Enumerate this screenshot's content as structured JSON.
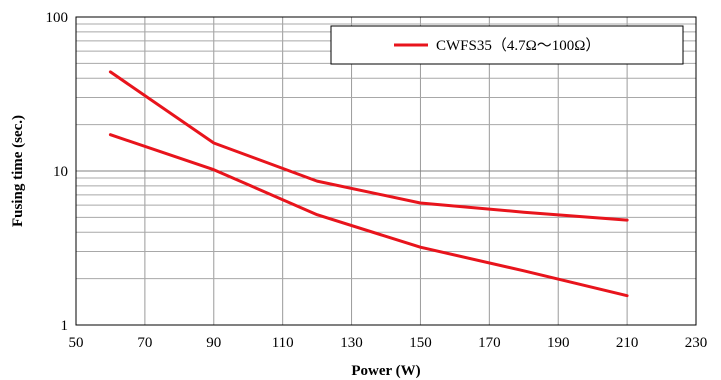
{
  "chart_data": {
    "type": "line",
    "xlabel": "Power (W)",
    "ylabel": "Fusing time (sec.)",
    "xlim": [
      50,
      230
    ],
    "ylim": [
      1,
      100
    ],
    "yscale": "log",
    "x_ticks": [
      "50",
      "70",
      "90",
      "110",
      "130",
      "150",
      "170",
      "190",
      "210",
      "230"
    ],
    "y_ticks": [
      "1",
      "10",
      "100"
    ],
    "grid": true,
    "legend": {
      "position": "top-right",
      "label": "CWFS35（4.7Ω～100Ω）"
    },
    "line_color": "#e8141c",
    "series": [
      {
        "x": [
          60,
          90,
          120,
          150,
          180,
          210
        ],
        "values": [
          44,
          15.2,
          8.6,
          6.2,
          5.4,
          4.8
        ]
      },
      {
        "x": [
          60,
          90,
          120,
          150,
          180,
          210
        ],
        "values": [
          17.2,
          10.2,
          5.2,
          3.2,
          2.25,
          1.55
        ]
      }
    ]
  }
}
